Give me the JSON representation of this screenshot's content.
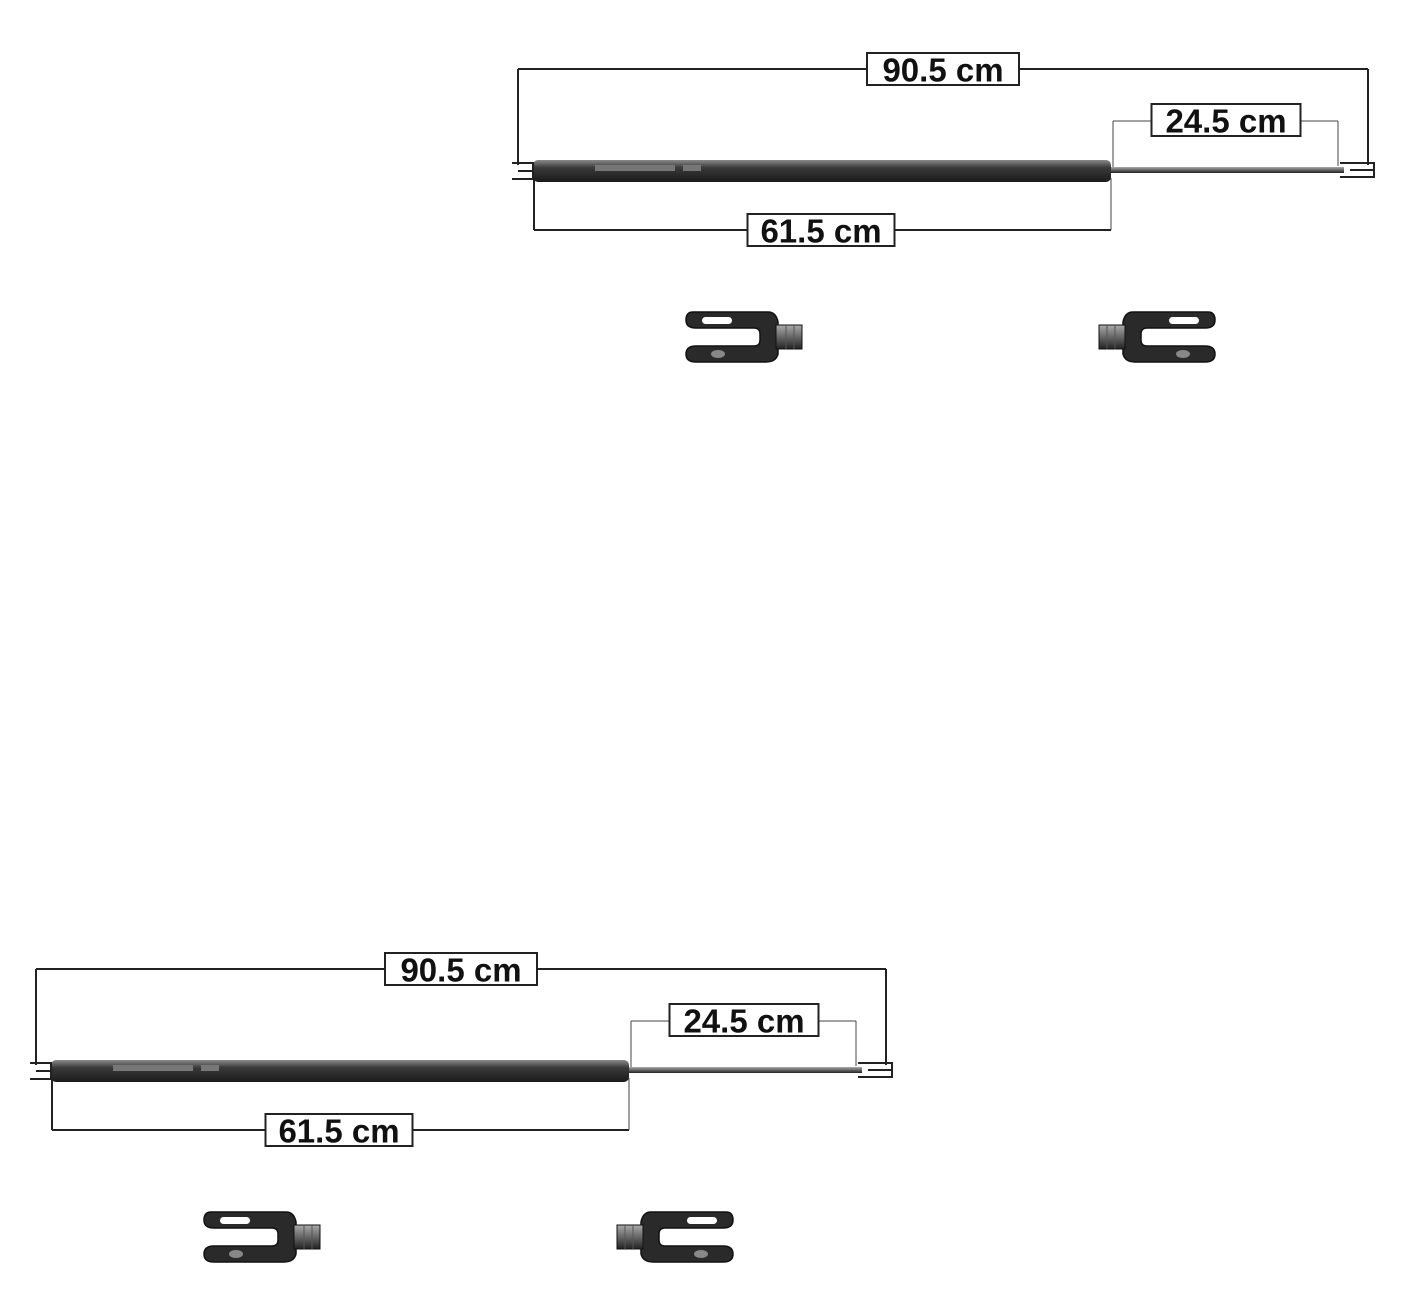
{
  "strut_diagrams": [
    {
      "overall_length": "90.5 cm",
      "rod_length": "24.5 cm",
      "body_length": "61.5 cm"
    },
    {
      "overall_length": "90.5 cm",
      "rod_length": "24.5 cm",
      "body_length": "61.5 cm"
    }
  ]
}
